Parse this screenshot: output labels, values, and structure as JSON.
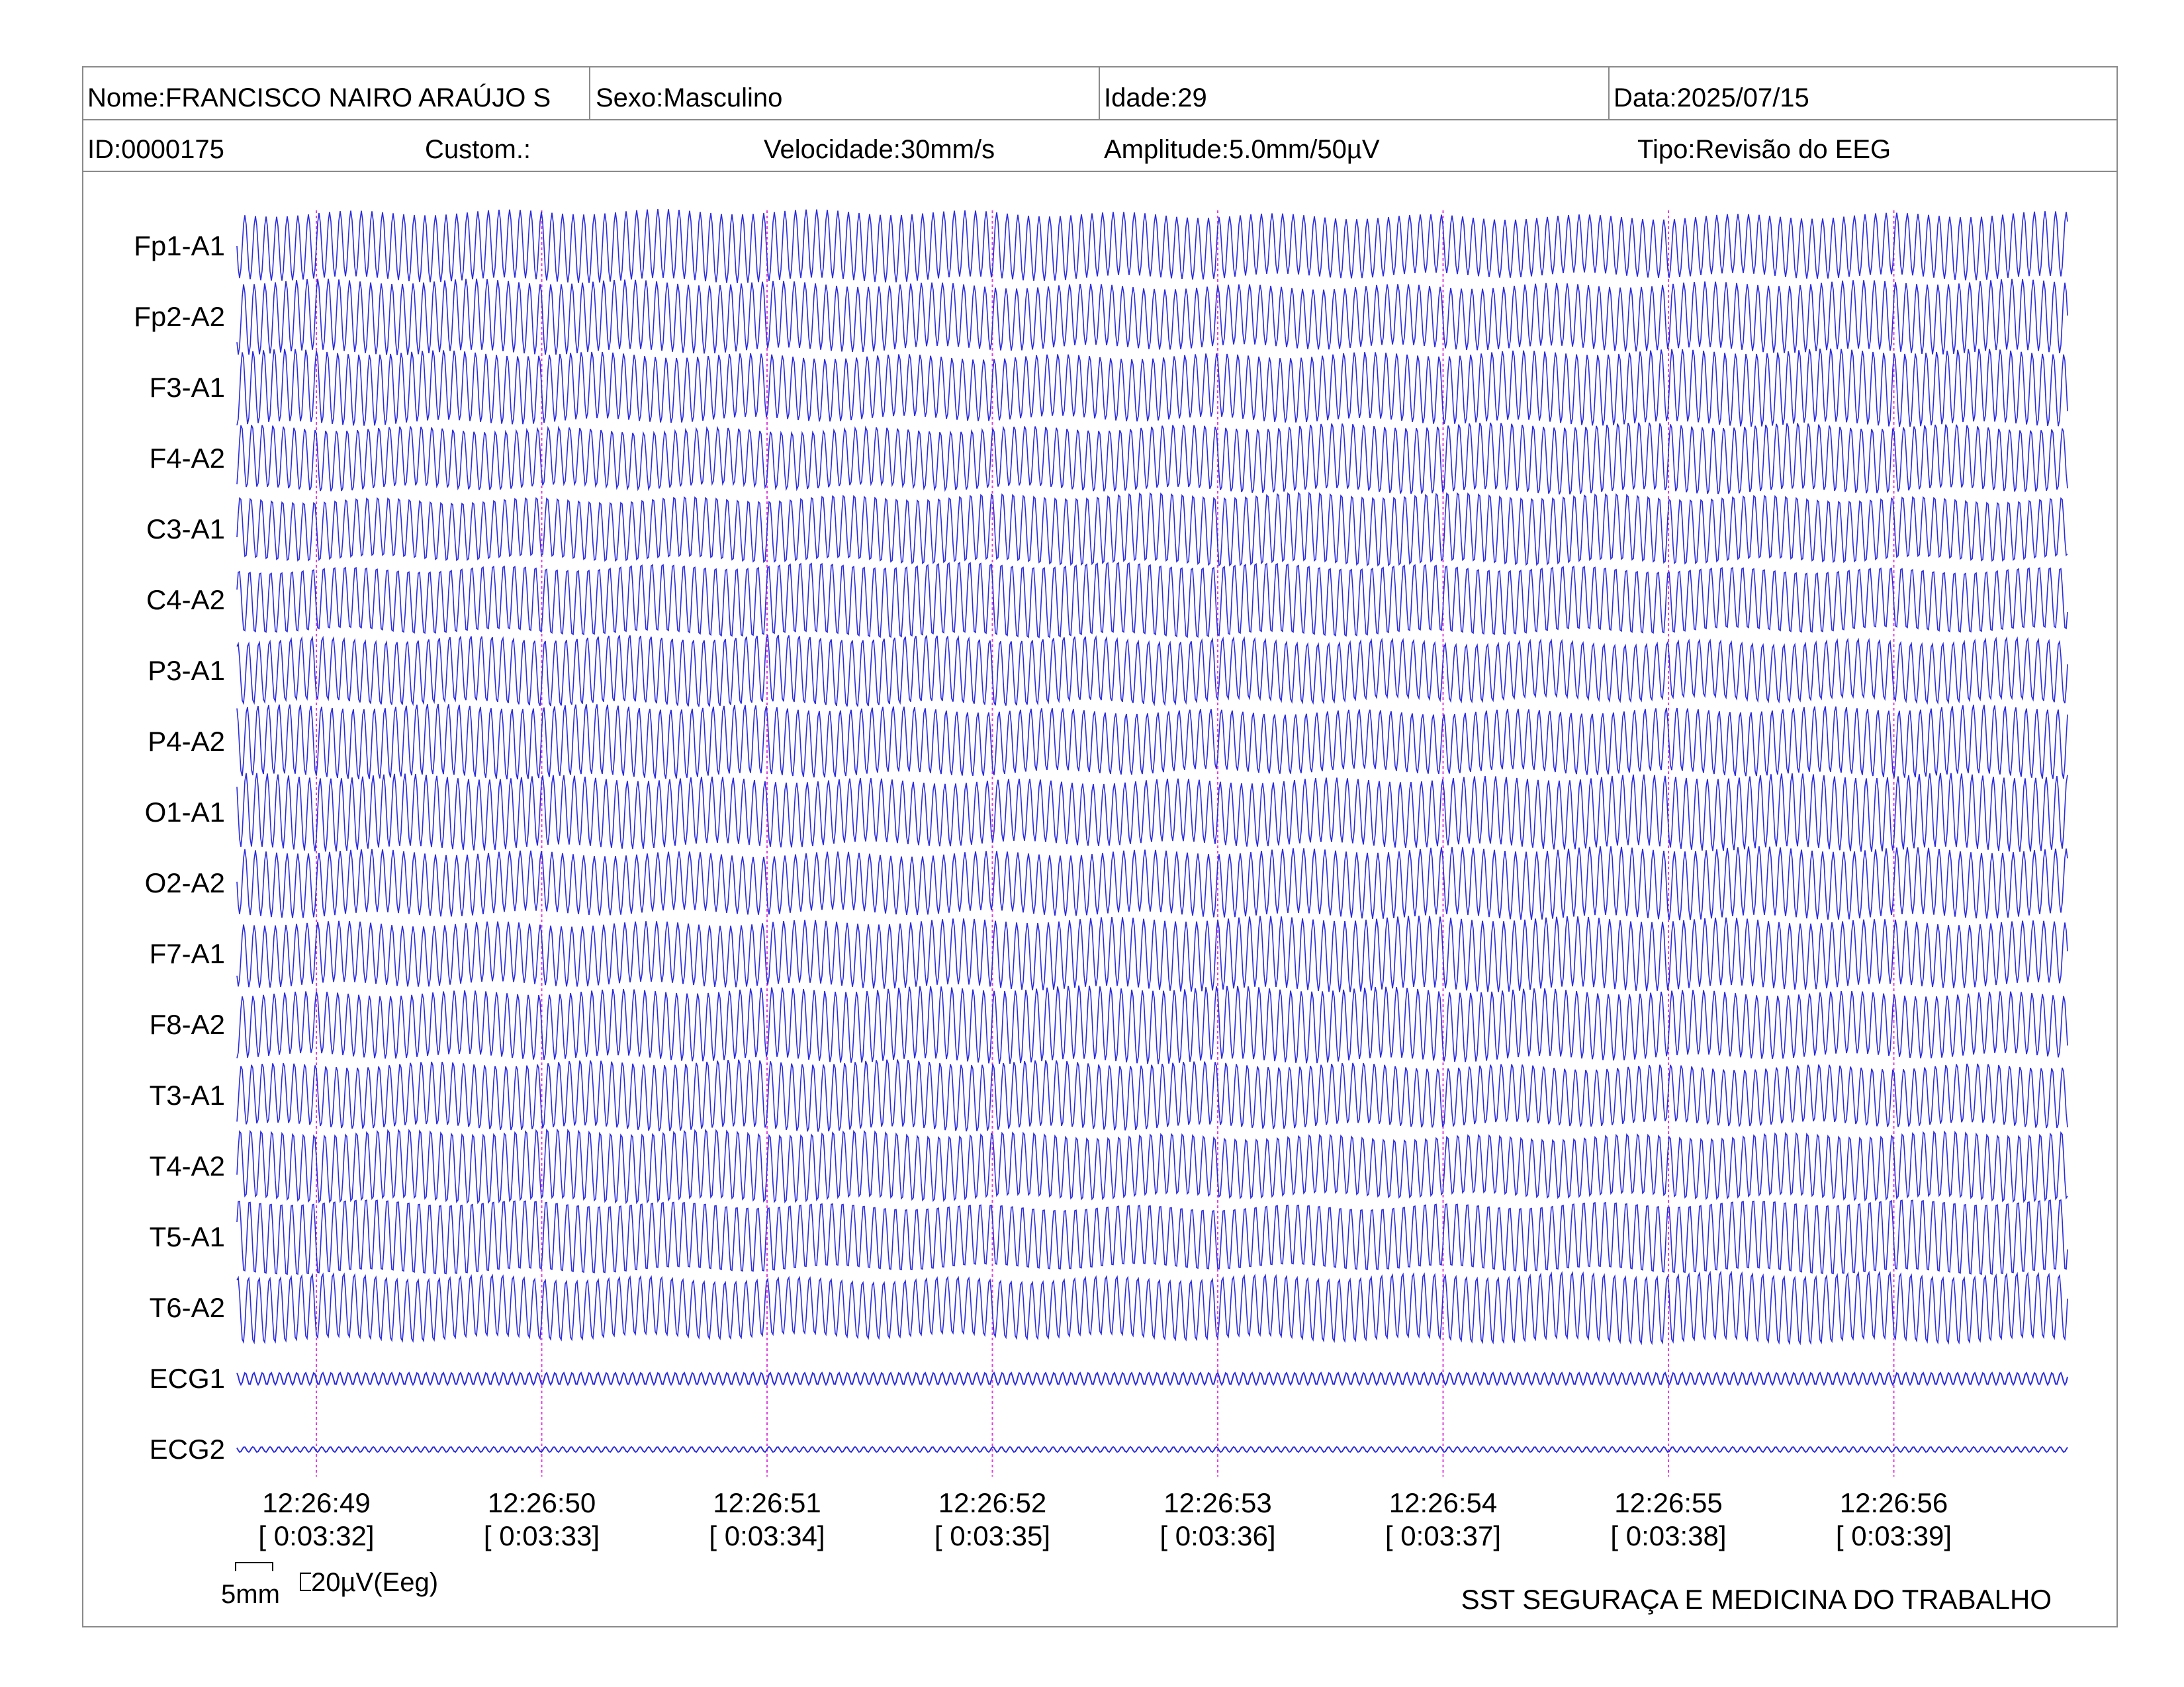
{
  "header": {
    "row1": {
      "name": "Nome:FRANCISCO NAIRO ARAÚJO S",
      "sex": "Sexo:Masculino",
      "age": "Idade:29",
      "date": "Data:2025/07/15"
    },
    "row2": {
      "id": "ID:0000175",
      "custom": "Custom.:",
      "speed": "Velocidade:30mm/s",
      "amplitude": "Amplitude:5.0mm/50µV",
      "type": "Tipo:Revisão do EEG"
    }
  },
  "channels": [
    "Fp1-A1",
    "Fp2-A2",
    "F3-A1",
    "F4-A2",
    "C3-A1",
    "C4-A2",
    "P3-A1",
    "P4-A2",
    "O1-A1",
    "O2-A2",
    "F7-A1",
    "F8-A2",
    "T3-A1",
    "T4-A2",
    "T5-A1",
    "T6-A2",
    "ECG1",
    "ECG2"
  ],
  "time_marks": [
    {
      "clock": "12:26:49",
      "elapsed": "[ 0:03:32]"
    },
    {
      "clock": "12:26:50",
      "elapsed": "[ 0:03:33]"
    },
    {
      "clock": "12:26:51",
      "elapsed": "[ 0:03:34]"
    },
    {
      "clock": "12:26:52",
      "elapsed": "[ 0:03:35]"
    },
    {
      "clock": "12:26:53",
      "elapsed": "[ 0:03:36]"
    },
    {
      "clock": "12:26:54",
      "elapsed": "[ 0:03:37]"
    },
    {
      "clock": "12:26:55",
      "elapsed": "[ 0:03:38]"
    },
    {
      "clock": "12:26:56",
      "elapsed": "[ 0:03:39]"
    }
  ],
  "scale": {
    "time_label": "5mm",
    "amp_label": "20µV(Eeg)"
  },
  "footer": {
    "company": "SST SEGURAÇA E MEDICINA DO TRABALHO"
  },
  "colors": {
    "trace": "#2b2bdc",
    "marker": "#e040e0",
    "border": "#8a8a8a"
  }
}
